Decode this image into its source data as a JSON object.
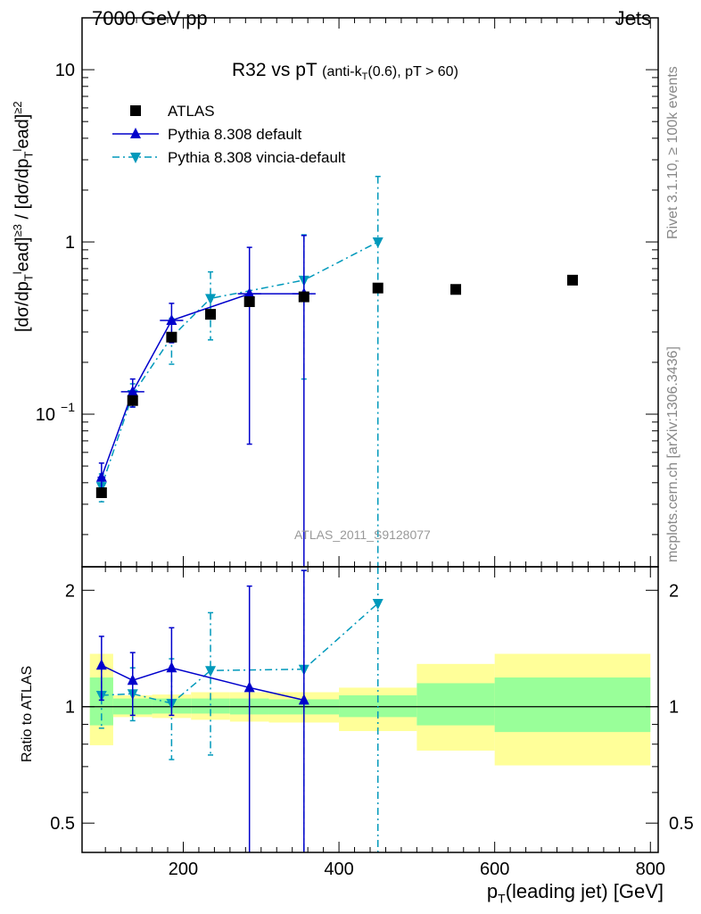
{
  "header": {
    "left": "7000 GeV pp",
    "right": "Jets"
  },
  "side_text": {
    "rivet": "Rivet 3.1.10, ≥ 100k events",
    "mcplots": "mcplots.cern.ch [arXiv:1306.3436]"
  },
  "plot_title": {
    "main": "R32 vs pT",
    "qualifier_pre": "(anti-k",
    "qualifier_sub": "T",
    "qualifier_post": "(0.6), pT > 60)"
  },
  "analysis_id": "ATLAS_2011_S9128077",
  "chart_data": [
    {
      "type": "scatter",
      "panel": "main",
      "title": "R32 vs pT (anti-kT(0.6), pT > 60)",
      "xlabel": "p_T(leading jet) [GeV]",
      "ylabel": "[dσ/dp_T lead]^{≥3} / [dσ/dp_T lead]^{≥2}",
      "yscale": "log",
      "xlim": [
        70,
        810
      ],
      "ylim": [
        0.013,
        20
      ],
      "x_ticks": [
        "200",
        "400",
        "600",
        "800"
      ],
      "y_ticks": [
        {
          "label": "10",
          "exp": "−1",
          "value": 0.1
        },
        {
          "label": "1",
          "exp": "",
          "value": 1
        },
        {
          "label": "10",
          "exp": "",
          "value": 10
        }
      ],
      "legend_position": "top-left",
      "series": [
        {
          "name": "ATLAS",
          "marker": "square",
          "color": "#000000",
          "x": [
            95,
            135,
            185,
            235,
            285,
            355,
            450,
            550,
            700
          ],
          "y": [
            0.035,
            0.12,
            0.28,
            0.38,
            0.45,
            0.48,
            0.54,
            0.53,
            0.6
          ]
        },
        {
          "name": "Pythia 8.308 default",
          "marker": "triangle-up",
          "line": "solid",
          "color": "#0000cc",
          "x": [
            95,
            135,
            185,
            285,
            355
          ],
          "y": [
            0.043,
            0.135,
            0.35,
            0.5,
            0.5
          ],
          "x_edges": [
            [
              90,
              100
            ],
            [
              120,
              150
            ],
            [
              170,
              200
            ],
            [
              270,
              300
            ],
            [
              340,
              370
            ]
          ],
          "err_low": [
            0.036,
            0.11,
            0.26,
            0.067,
            0.001
          ],
          "err_high": [
            0.052,
            0.16,
            0.44,
            0.93,
            1.09
          ]
        },
        {
          "name": "Pythia 8.308 vincia-default",
          "marker": "triangle-down",
          "line": "dash-dot",
          "color": "#0099bb",
          "x": [
            95,
            135,
            185,
            235,
            355,
            450
          ],
          "y": [
            0.038,
            0.13,
            0.28,
            0.47,
            0.6,
            1.0
          ],
          "err_low": [
            0.031,
            0.11,
            0.195,
            0.27,
            0.16,
            0.001
          ],
          "err_high": [
            0.045,
            0.15,
            0.36,
            0.67,
            1.1,
            2.4
          ]
        }
      ]
    },
    {
      "type": "scatter",
      "panel": "ratio",
      "ylabel": "Ratio to ATLAS",
      "yscale": "log",
      "xlim": [
        70,
        810
      ],
      "ylim": [
        0.42,
        2.3
      ],
      "y_ticks": [
        "0.5",
        "1",
        "2"
      ],
      "x_ticks": [
        "200",
        "400",
        "600",
        "800"
      ],
      "xlabel": "p_T(leading jet) [GeV]",
      "bands": {
        "inner_color": "#99ff99",
        "outer_color": "#ffff99",
        "bins": [
          {
            "x0": 80,
            "x1": 110,
            "in_lo": 0.895,
            "in_hi": 1.19,
            "out_lo": 0.795,
            "out_hi": 1.37
          },
          {
            "x0": 110,
            "x1": 160,
            "in_lo": 0.955,
            "in_hi": 1.05,
            "out_lo": 0.94,
            "out_hi": 1.07
          },
          {
            "x0": 160,
            "x1": 210,
            "in_lo": 0.96,
            "in_hi": 1.05,
            "out_lo": 0.935,
            "out_hi": 1.075
          },
          {
            "x0": 210,
            "x1": 260,
            "in_lo": 0.96,
            "in_hi": 1.05,
            "out_lo": 0.925,
            "out_hi": 1.09
          },
          {
            "x0": 260,
            "x1": 310,
            "in_lo": 0.955,
            "in_hi": 1.05,
            "out_lo": 0.915,
            "out_hi": 1.09
          },
          {
            "x0": 310,
            "x1": 400,
            "in_lo": 0.955,
            "in_hi": 1.045,
            "out_lo": 0.91,
            "out_hi": 1.09
          },
          {
            "x0": 400,
            "x1": 500,
            "in_lo": 0.94,
            "in_hi": 1.07,
            "out_lo": 0.865,
            "out_hi": 1.12
          },
          {
            "x0": 500,
            "x1": 600,
            "in_lo": 0.895,
            "in_hi": 1.15,
            "out_lo": 0.77,
            "out_hi": 1.29
          },
          {
            "x0": 600,
            "x1": 800,
            "in_lo": 0.86,
            "in_hi": 1.19,
            "out_lo": 0.705,
            "out_hi": 1.37
          }
        ]
      },
      "series": [
        {
          "name": "Pythia 8.308 default",
          "marker": "triangle-up",
          "line": "solid",
          "color": "#0000cc",
          "x": [
            95,
            135,
            185,
            285,
            355
          ],
          "y": [
            1.28,
            1.17,
            1.26,
            1.12,
            1.04
          ],
          "err_low": [
            1.04,
            0.95,
            0.95,
            0.14,
            0.003
          ],
          "err_high": [
            1.52,
            1.38,
            1.6,
            2.05,
            2.25
          ]
        },
        {
          "name": "Pythia 8.308 vincia-default",
          "marker": "triangle-down",
          "line": "dash-dot",
          "color": "#0099bb",
          "x": [
            95,
            135,
            185,
            235,
            355,
            450
          ],
          "y": [
            1.07,
            1.08,
            1.02,
            1.24,
            1.25,
            1.85
          ],
          "err_low": [
            0.88,
            0.92,
            0.73,
            0.75,
            0.34,
            0.001
          ],
          "err_high": [
            1.28,
            1.26,
            1.33,
            1.75,
            2.25,
            4.6
          ]
        }
      ]
    }
  ]
}
